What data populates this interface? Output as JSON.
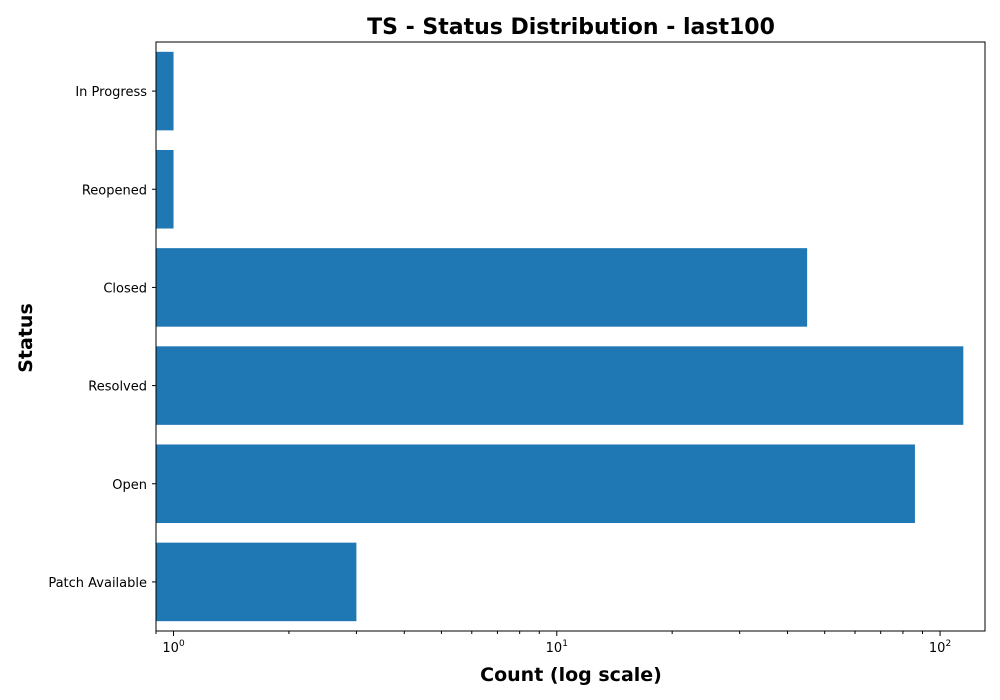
{
  "chart_data": {
    "type": "bar",
    "orientation": "horizontal",
    "title": "TS - Status Distribution - last100",
    "xlabel": "Count (log scale)",
    "ylabel": "Status",
    "xscale": "log",
    "xlim": [
      0.9,
      131
    ],
    "categories": [
      "Patch Available",
      "Open",
      "Resolved",
      "Closed",
      "Reopened",
      "In Progress"
    ],
    "values": [
      3,
      86,
      115,
      45,
      1,
      1
    ],
    "x_ticks": [
      {
        "value": 1,
        "base": "10",
        "exp": "0"
      },
      {
        "value": 10,
        "base": "10",
        "exp": "1"
      },
      {
        "value": 100,
        "base": "10",
        "exp": "2"
      }
    ],
    "bar_color": "#1f77b4",
    "grid": false
  }
}
